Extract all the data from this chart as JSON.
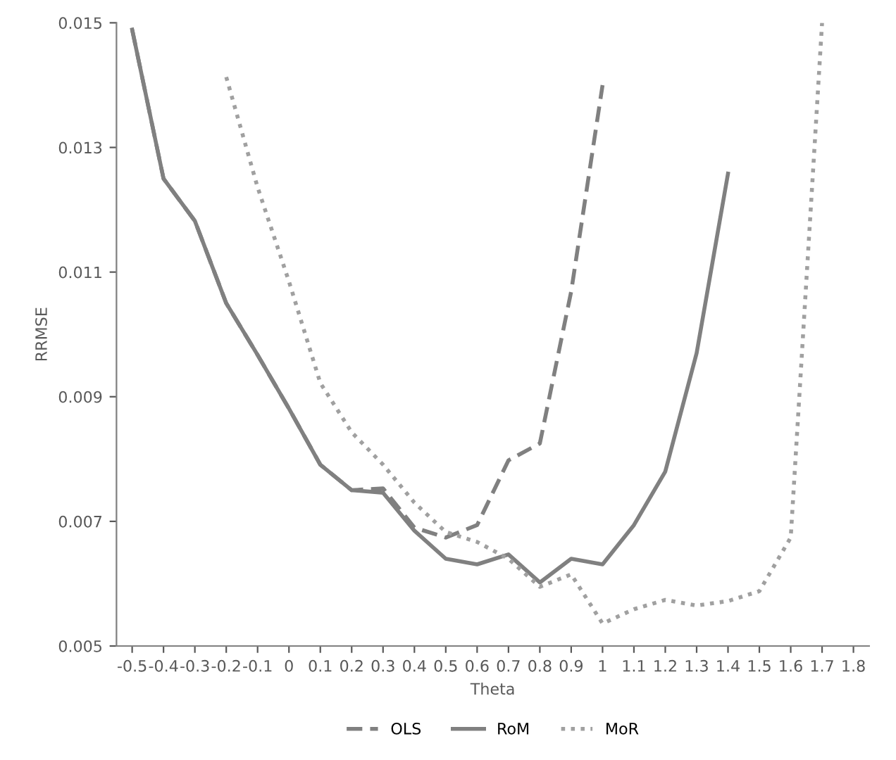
{
  "chart_data": {
    "type": "line",
    "xlabel": "Theta",
    "ylabel": "RRMSE",
    "x": [
      -0.5,
      -0.4,
      -0.3,
      -0.2,
      -0.1,
      0,
      0.1,
      0.2,
      0.3,
      0.4,
      0.5,
      0.6,
      0.7,
      0.8,
      0.9,
      1,
      1.1,
      1.2,
      1.3,
      1.4,
      1.5,
      1.6,
      1.7
    ],
    "series": [
      {
        "name": "OLS",
        "color": "#808080",
        "line_style": "dashed",
        "values": [
          0.01489,
          0.0125,
          0.01182,
          0.0105,
          0.00967,
          0.00881,
          0.00791,
          0.0075,
          0.00753,
          0.0069,
          0.00674,
          0.00694,
          0.00798,
          0.00825,
          0.01069,
          0.014,
          null,
          null,
          null,
          null,
          null,
          null,
          null
        ]
      },
      {
        "name": "RoM",
        "color": "#808080",
        "line_style": "solid",
        "values": [
          0.01489,
          0.0125,
          0.01182,
          0.0105,
          0.00967,
          0.00881,
          0.00791,
          0.0075,
          0.00746,
          0.00685,
          0.0064,
          0.00631,
          0.00647,
          0.00602,
          0.0064,
          0.00631,
          0.00694,
          0.0078,
          0.0097,
          0.01258,
          null,
          null,
          null
        ]
      },
      {
        "name": "MoR",
        "color": "#a0a0a0",
        "line_style": "dotted",
        "values": [
          null,
          null,
          null,
          0.01413,
          0.01236,
          0.01085,
          0.00922,
          0.00843,
          0.00791,
          0.0073,
          0.00683,
          0.00667,
          0.0064,
          0.00595,
          0.00615,
          0.00536,
          0.00559,
          0.00574,
          0.00565,
          0.00572,
          0.00588,
          0.00674,
          0.015
        ]
      }
    ],
    "xlim": [
      -0.55,
      1.85
    ],
    "xticks": [
      -0.5,
      -0.4,
      -0.3,
      -0.2,
      -0.1,
      0,
      0.1,
      0.2,
      0.3,
      0.4,
      0.5,
      0.6,
      0.7,
      0.8,
      0.9,
      1,
      1.1,
      1.2,
      1.3,
      1.4,
      1.5,
      1.6,
      1.7,
      1.8
    ],
    "ylim": [
      0.005,
      0.015
    ],
    "yticks": [
      0.005,
      0.007,
      0.009,
      0.011,
      0.013,
      0.015
    ],
    "grid": false,
    "legend": "bottom"
  }
}
